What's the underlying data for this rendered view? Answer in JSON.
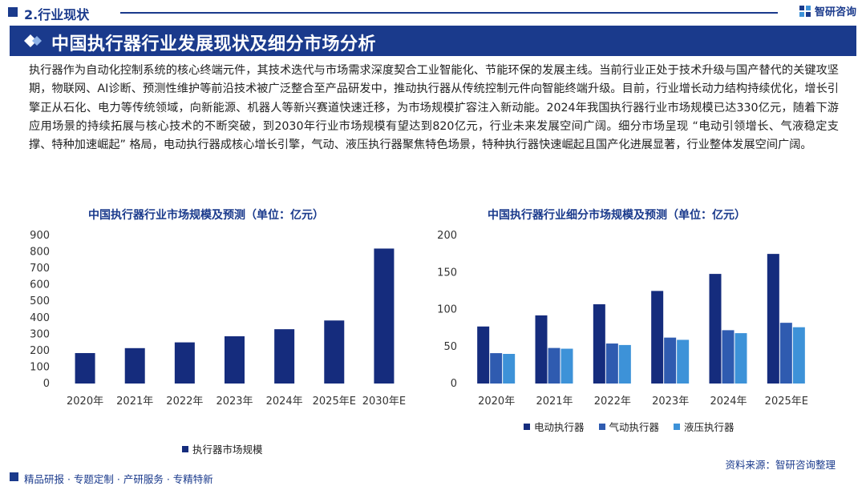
{
  "header": {
    "section_title": "2.行业现状",
    "brand": "智研咨询"
  },
  "banner": {
    "title": "中国执行器行业发展现状及细分市场分析"
  },
  "paragraph": "执行器作为自动化控制系统的核心终端元件，其技术迭代与市场需求深度契合工业智能化、节能环保的发展主线。当前行业正处于技术升级与国产替代的关键攻坚期，物联网、AI诊断、预测性维护等前沿技术被广泛整合至产品研发中，推动执行器从传统控制元件向智能终端升级。目前，行业增长动力结构持续优化，增长引擎正从石化、电力等传统领域，向新能源、机器人等新兴赛道快速迁移，为市场规模扩容注入新动能。2024年我国执行器行业市场规模已达330亿元，随着下游应用场景的持续拓展与核心技术的不断突破，到2030年行业市场规模有望达到820亿元，行业未来发展空间广阔。细分市场呈现 “电动引领增长、气液稳定支撑、特种加速崛起” 格局，电动执行器成核心增长引擎，气动、液压执行器聚焦特色场景，特种执行器快速崛起且国产化进展显著，行业整体发展空间广阔。",
  "colors": {
    "navy": "#1a3a8c",
    "dark": "#152c7d",
    "mid": "#2f5bb0",
    "light": "#3d92d8",
    "axis_text": "#333333"
  },
  "chart_data": [
    {
      "type": "bar",
      "title": "中国执行器行业市场规模及预测（单位：亿元）",
      "categories": [
        "2020年",
        "2021年",
        "2022年",
        "2023年",
        "2024年",
        "2025年E",
        "2030年E"
      ],
      "series": [
        {
          "name": "执行器市场规模",
          "values": [
            185,
            215,
            250,
            287,
            330,
            383,
            820
          ]
        }
      ],
      "ylim": [
        0,
        900
      ],
      "yticks": [
        0,
        100,
        200,
        300,
        400,
        500,
        600,
        700,
        800,
        900
      ],
      "xlabel": "",
      "ylabel": "",
      "grid": false,
      "legend": "bottom"
    },
    {
      "type": "bar",
      "title": "中国执行器行业细分市场规模及预测（单位：亿元）",
      "categories": [
        "2020年",
        "2021年",
        "2022年",
        "2023年",
        "2024年",
        "2025年E"
      ],
      "series": [
        {
          "name": "电动执行器",
          "values": [
            77,
            92,
            107,
            125,
            148,
            175
          ]
        },
        {
          "name": "气动执行器",
          "values": [
            41,
            48,
            54,
            62,
            72,
            82
          ]
        },
        {
          "name": "液压执行器",
          "values": [
            40,
            47,
            52,
            59,
            68,
            76
          ]
        }
      ],
      "ylim": [
        0,
        200
      ],
      "yticks": [
        0,
        50,
        100,
        150,
        200
      ],
      "xlabel": "",
      "ylabel": "",
      "grid": false,
      "legend": "bottom"
    }
  ],
  "source": "资料来源：智研咨询整理",
  "footer": "精品研报 · 专题定制 · 产研服务 · 专精特新"
}
